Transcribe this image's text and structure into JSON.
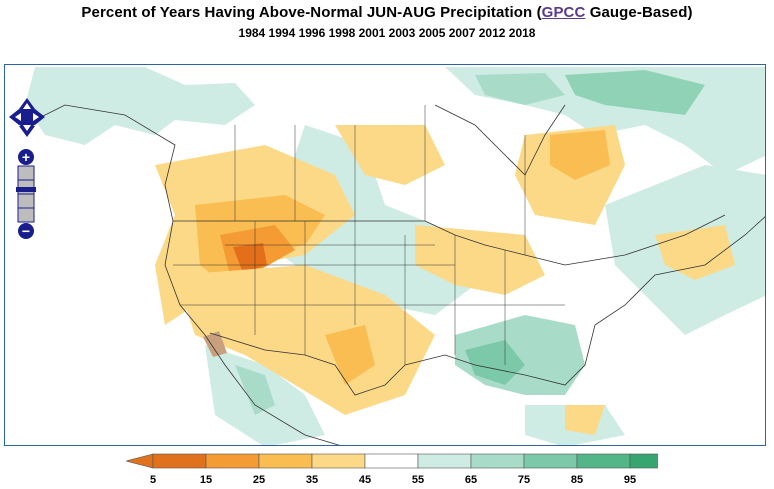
{
  "header": {
    "title_prefix": "Percent of Years Having Above-Normal JUN-AUG Precipitation (",
    "title_link": "GPCC",
    "title_suffix": " Gauge-Based)",
    "years": "1984 1994 1996 1998 2001 2003 2005 2007 2012 2018"
  },
  "map": {
    "region": "North America",
    "controls": {
      "pan": [
        "pan-up",
        "pan-down",
        "pan-left",
        "pan-right"
      ],
      "zoom": [
        "zoom-in",
        "zoom-out"
      ],
      "zoom_in_label": "+",
      "zoom_out_label": "−"
    }
  },
  "legend": {
    "ticks": [
      "5",
      "15",
      "25",
      "35",
      "45",
      "55",
      "65",
      "75",
      "85",
      "95"
    ],
    "colors": [
      "#e0721e",
      "#f49b33",
      "#f9bd52",
      "#fbd987",
      "#ffffff",
      "#cfece4",
      "#a8dcc8",
      "#7cc9a9",
      "#52b688",
      "#36a56f"
    ],
    "left_arrow_color": "#e0721e",
    "right_arrow_color": "#36a56f"
  },
  "palette": {
    "low_dark": "#e36f1a",
    "low_mid": "#f49b33",
    "low_light": "#fbd987",
    "high_light": "#cfece4",
    "high_mid": "#8fd2b6",
    "high_dark": "#5bba90",
    "brown": "#c8a07d",
    "border": "#2b63a8",
    "control_blue": "#1a1e8c"
  }
}
